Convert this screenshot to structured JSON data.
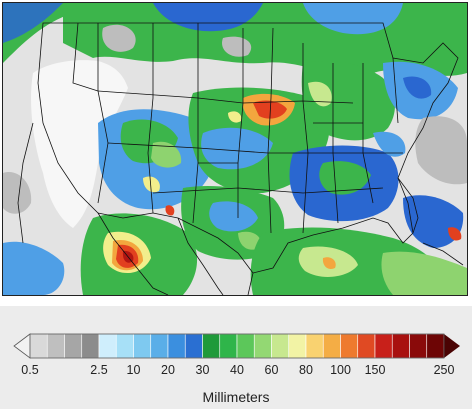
{
  "legend": {
    "units": "Millimeters",
    "ticks": [
      "0.5",
      "2.5",
      "10",
      "20",
      "30",
      "40",
      "60",
      "80",
      "100",
      "150",
      "250"
    ],
    "bins": [
      "#d9d9d9",
      "#bfbfbf",
      "#a6a6a6",
      "#8c8c8c",
      "#cfeefc",
      "#a7e0f7",
      "#7ec9f0",
      "#5aaee8",
      "#3b8fdf",
      "#2a6fd2",
      "#1f9a3a",
      "#2fb54a",
      "#5cc75a",
      "#93d873",
      "#c7e88f",
      "#f2f3a5",
      "#f9d270",
      "#f4ad45",
      "#ee7a2e",
      "#e04a23",
      "#c8201a",
      "#a8100f",
      "#8a0a0a",
      "#6d0505"
    ],
    "under_color": "#f2f2f2",
    "over_color": "#4a0303"
  },
  "map": {
    "colors": {
      "ocean_dry": "#e3e3e3",
      "dry_land": "#f7f7f7",
      "light_gray": "#bdbdbd",
      "mid_gray": "#9a9a9a",
      "light_blue": "#9fd8f5",
      "mid_blue": "#4f9fe6",
      "deep_blue": "#2a67d0",
      "dark_green": "#1f8f36",
      "green": "#3cb54b",
      "light_green": "#8ed36f",
      "yellow": "#f2ee8c",
      "orange": "#f3a63e",
      "red": "#e2401f",
      "dark_red": "#b11612",
      "border": "#111111"
    }
  }
}
